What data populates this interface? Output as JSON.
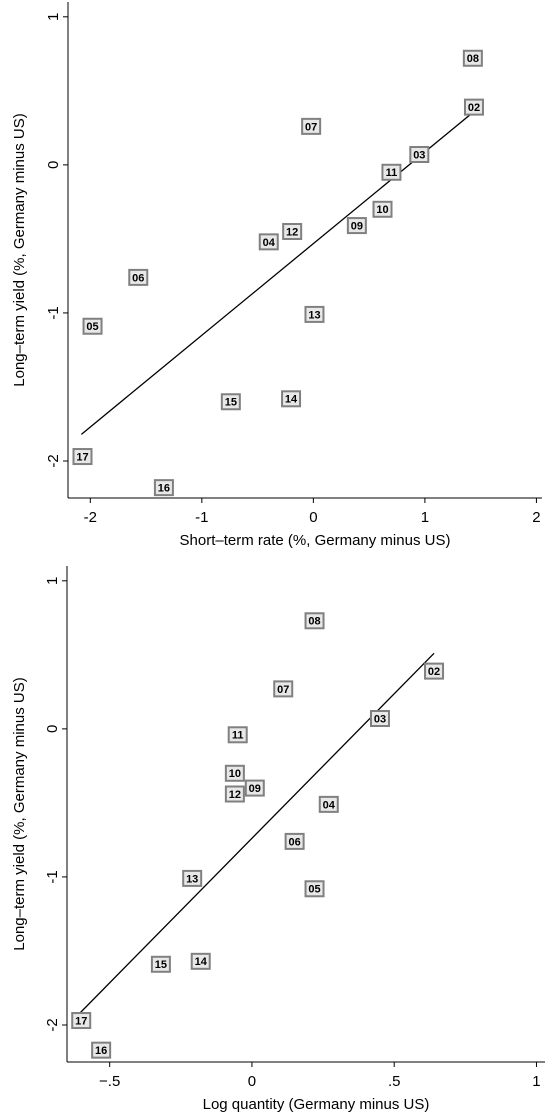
{
  "chart_data": [
    {
      "type": "scatter",
      "x_label": "Short–term rate (%, Germany minus US)",
      "y_label": "Long–term yield (%, Germany minus US)",
      "labels": [
        "08",
        "02",
        "07",
        "03",
        "11",
        "10",
        "09",
        "12",
        "04",
        "06",
        "05",
        "13",
        "15",
        "14",
        "17",
        "16"
      ],
      "x": [
        1.43,
        1.44,
        -0.02,
        0.95,
        0.7,
        0.62,
        0.39,
        -0.19,
        -0.4,
        -1.57,
        -1.98,
        0.01,
        -0.74,
        -0.2,
        -2.07,
        -1.34
      ],
      "y": [
        0.72,
        0.39,
        0.26,
        0.07,
        -0.05,
        -0.3,
        -0.41,
        -0.45,
        -0.52,
        -0.76,
        -1.09,
        -1.01,
        -1.6,
        -1.58,
        -1.97,
        -2.18
      ],
      "fit_line": {
        "x": [
          -2.08,
          1.44
        ],
        "y": [
          -1.82,
          0.36
        ]
      },
      "xlim": [
        -2.2,
        2.05
      ],
      "ylim": [
        -2.25,
        1.1
      ],
      "xticks": [
        -2,
        -1,
        0,
        1,
        2
      ],
      "yticks": [
        -2,
        -1,
        0,
        1
      ]
    },
    {
      "type": "scatter",
      "x_label": "Log quantity (Germany minus US)",
      "y_label": "Long–term yield (%, Germany minus US)",
      "labels": [
        "08",
        "02",
        "07",
        "03",
        "11",
        "10",
        "09",
        "12",
        "04",
        "06",
        "05",
        "13",
        "15",
        "14",
        "17",
        "16"
      ],
      "x": [
        0.22,
        0.64,
        0.11,
        0.45,
        -0.05,
        -0.06,
        0.01,
        -0.06,
        0.27,
        0.15,
        0.22,
        -0.21,
        -0.32,
        -0.18,
        -0.6,
        -0.53
      ],
      "y": [
        0.73,
        0.39,
        0.27,
        0.07,
        -0.04,
        -0.3,
        -0.4,
        -0.44,
        -0.51,
        -0.76,
        -1.08,
        -1.01,
        -1.59,
        -1.57,
        -1.97,
        -2.17
      ],
      "fit_line": {
        "x": [
          -0.61,
          0.64
        ],
        "y": [
          -1.93,
          0.51
        ]
      },
      "xlim": [
        -0.65,
        1.03
      ],
      "ylim": [
        -2.25,
        1.1
      ],
      "xticks": [
        {
          "value": -0.5,
          "label": "−.5"
        },
        0,
        {
          "value": 0.5,
          "label": ".5"
        },
        1
      ],
      "yticks": [
        -2,
        -1,
        0,
        1
      ]
    }
  ]
}
